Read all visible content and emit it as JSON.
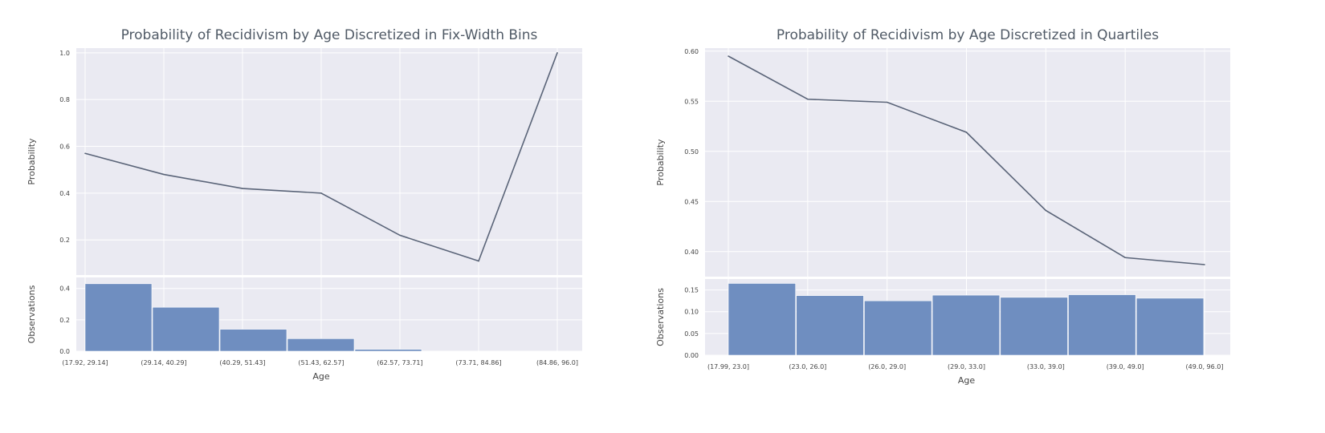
{
  "chart_data": [
    {
      "title": "Probability of Recidivism by Age Discretized in Fix-Width Bins",
      "xlabel": "Age",
      "categories": [
        "(17.92, 29.14]",
        "(29.14, 40.29]",
        "(40.29, 51.43]",
        "(51.43, 62.57]",
        "(62.57, 73.71]",
        "(73.71, 84.86]",
        "(84.86, 96.0]"
      ],
      "line": {
        "type": "line",
        "ylabel": "Probability",
        "ylim": [
          0.05,
          1.02
        ],
        "yticks": [
          0.2,
          0.4,
          0.6,
          0.8,
          1.0
        ],
        "ytick_labels": [
          "0.2",
          "0.4",
          "0.6",
          "0.8",
          "1.0"
        ],
        "values": [
          0.57,
          0.48,
          0.42,
          0.4,
          0.22,
          0.11,
          1.0
        ],
        "color": "#5a6478"
      },
      "histogram": {
        "type": "bar",
        "ylabel": "Observations",
        "ylim": [
          0,
          0.47
        ],
        "yticks": [
          0,
          0.2,
          0.4
        ],
        "ytick_labels": [
          "0.0",
          "0.2",
          "0.4"
        ],
        "values": [
          0.43,
          0.28,
          0.14,
          0.08,
          0.012,
          0.0,
          0.0
        ],
        "color": "#6f8ec0"
      }
    },
    {
      "title": "Probability of Recidivism by Age Discretized in Quartiles",
      "xlabel": "Age",
      "categories": [
        "(17.99, 23.0]",
        "(23.0, 26.0]",
        "(26.0, 29.0]",
        "(29.0, 33.0]",
        "(33.0, 39.0]",
        "(39.0, 49.0]",
        "(49.0, 96.0]"
      ],
      "line": {
        "type": "line",
        "ylabel": "Probability",
        "ylim": [
          0.375,
          0.603
        ],
        "yticks": [
          0.4,
          0.45,
          0.5,
          0.55,
          0.6
        ],
        "ytick_labels": [
          "0.40",
          "0.45",
          "0.50",
          "0.55",
          "0.60"
        ],
        "values": [
          0.595,
          0.552,
          0.549,
          0.519,
          0.441,
          0.394,
          0.387
        ],
        "color": "#5a6478"
      },
      "histogram": {
        "type": "bar",
        "ylabel": "Observations",
        "ylim": [
          0,
          0.175
        ],
        "yticks": [
          0,
          0.05,
          0.1,
          0.15
        ],
        "ytick_labels": [
          "0.00",
          "0.05",
          "0.10",
          "0.15"
        ],
        "values": [
          0.165,
          0.137,
          0.125,
          0.138,
          0.133,
          0.139,
          0.131
        ],
        "color": "#6f8ec0"
      }
    }
  ]
}
